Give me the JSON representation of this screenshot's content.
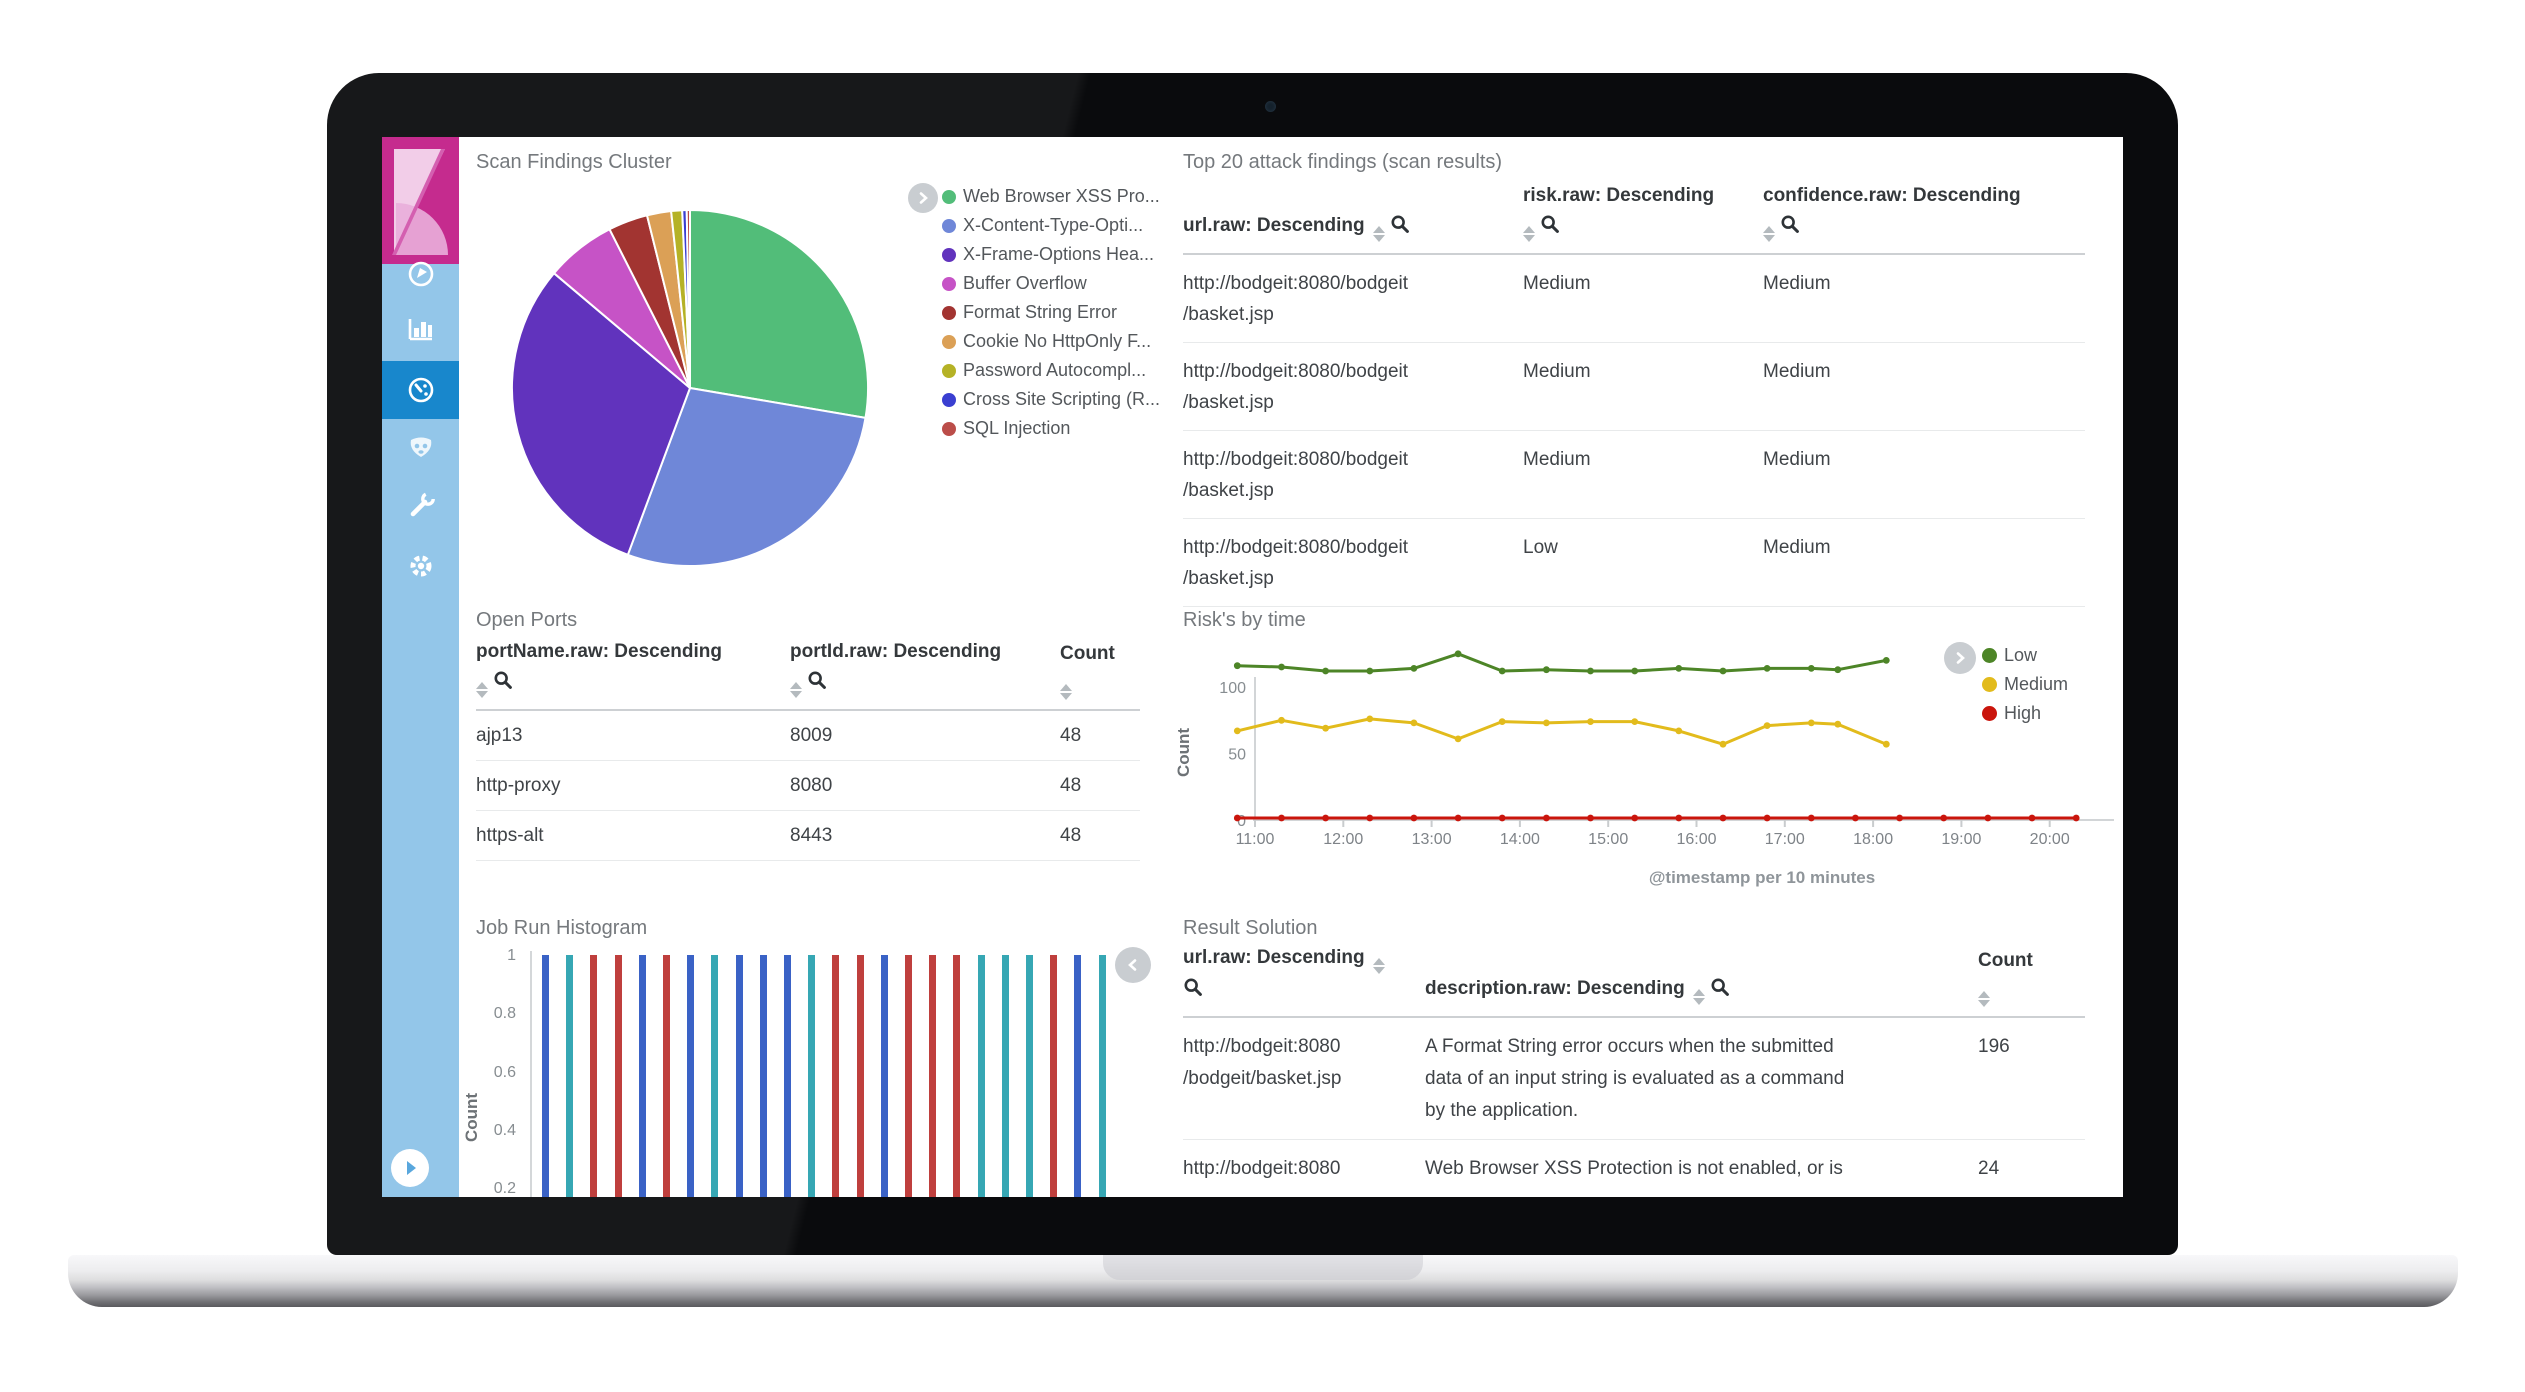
{
  "sidebar": {
    "logo": "kibana-logo",
    "items": [
      {
        "icon": "compass-icon",
        "active": false
      },
      {
        "icon": "bar-chart-icon",
        "active": false
      },
      {
        "icon": "dashboard-icon",
        "active": true
      },
      {
        "icon": "mask-icon",
        "active": false
      },
      {
        "icon": "wrench-icon",
        "active": false
      },
      {
        "icon": "gear-icon",
        "active": false
      }
    ],
    "collapse_icon": "expand-arrow-icon"
  },
  "panels": {
    "scan_findings": {
      "title": "Scan Findings Cluster"
    },
    "top20": {
      "title": "Top 20 attack findings (scan results)",
      "columns": [
        "url.raw: Descending",
        "risk.raw: Descending",
        "confidence.raw: Descending"
      ],
      "rows": [
        {
          "url": "http://bodgeit:8080/bodgeit\n/basket.jsp",
          "risk": "Medium",
          "confidence": "Medium"
        },
        {
          "url": "http://bodgeit:8080/bodgeit\n/basket.jsp",
          "risk": "Medium",
          "confidence": "Medium"
        },
        {
          "url": "http://bodgeit:8080/bodgeit\n/basket.jsp",
          "risk": "Medium",
          "confidence": "Medium"
        },
        {
          "url": "http://bodgeit:8080/bodgeit\n/basket.jsp",
          "risk": "Low",
          "confidence": "Medium"
        }
      ]
    },
    "open_ports": {
      "title": "Open Ports",
      "columns": [
        "portName.raw: Descending",
        "portId.raw: Descending",
        "Count"
      ],
      "rows": [
        {
          "portName": "ajp13",
          "portId": "8009",
          "count": "48"
        },
        {
          "portName": "http-proxy",
          "portId": "8080",
          "count": "48"
        },
        {
          "portName": "https-alt",
          "portId": "8443",
          "count": "48"
        }
      ]
    },
    "risks_by_time": {
      "title": "Risk's by time"
    },
    "job_run": {
      "title": "Job Run Histogram"
    },
    "result_solution": {
      "title": "Result Solution",
      "columns": [
        "url.raw: Descending",
        "description.raw: Descending",
        "Count"
      ],
      "rows": [
        {
          "url": "http://bodgeit:8080\n/bodgeit/basket.jsp",
          "description": "A Format String error occurs when the submitted\ndata of an input string is evaluated as a command\nby the application.",
          "count": "196"
        },
        {
          "url": "http://bodgeit:8080",
          "description": "Web Browser XSS Protection is not enabled, or is",
          "count": "24"
        }
      ]
    }
  },
  "chart_data": [
    {
      "type": "pie",
      "title": "Scan Findings Cluster",
      "categories": [
        "Web Browser XSS Pro...",
        "X-Content-Type-Opti...",
        "X-Frame-Options Hea...",
        "Buffer Overflow",
        "Format String Error",
        "Cookie No HttpOnly F...",
        "Password Autocompl...",
        "Cross Site Scripting (R...",
        "SQL Injection"
      ],
      "values": [
        27.8,
        28.1,
        30.6,
        6.4,
        3.6,
        2.2,
        1.0,
        0.4,
        0.3
      ],
      "colors": [
        "#52bd79",
        "#6f87d8",
        "#6133bd",
        "#c653c6",
        "#a23431",
        "#dba056",
        "#b5b226",
        "#3a3fd1",
        "#bb4d49"
      ],
      "legend_position": "right"
    },
    {
      "type": "line",
      "title": "Risk's by time",
      "xlabel": "@timestamp per 10 minutes",
      "ylabel": "Count",
      "ylim": [
        0,
        130
      ],
      "yticks": [
        "0",
        "50",
        "100"
      ],
      "xticks": [
        "11:00",
        "12:00",
        "13:00",
        "14:00",
        "15:00",
        "16:00",
        "17:00",
        "18:00",
        "19:00",
        "20:00"
      ],
      "legend_position": "right",
      "series": [
        {
          "name": "Low",
          "color": "#4d8527",
          "x": [
            10.8,
            11.3,
            11.8,
            12.3,
            12.8,
            13.3,
            13.8,
            14.3,
            14.8,
            15.3,
            15.8,
            16.3,
            16.8,
            17.3,
            17.6,
            18.15
          ],
          "y": [
            116,
            115,
            112,
            112,
            114,
            125,
            112,
            113,
            112,
            112,
            114,
            112,
            114,
            114,
            113,
            120
          ]
        },
        {
          "name": "Medium",
          "color": "#e2bb1c",
          "x": [
            10.8,
            11.3,
            11.8,
            12.3,
            12.8,
            13.3,
            13.8,
            14.3,
            14.8,
            15.3,
            15.8,
            16.3,
            16.8,
            17.3,
            17.6,
            18.15
          ],
          "y": [
            67,
            75,
            69,
            76,
            73,
            61,
            74,
            73,
            74,
            74,
            67,
            57,
            71,
            73,
            72,
            57
          ]
        },
        {
          "name": "High",
          "color": "#ca150c",
          "x": [
            10.8,
            11.3,
            11.8,
            12.3,
            12.8,
            13.3,
            13.8,
            14.3,
            14.8,
            15.3,
            15.8,
            16.3,
            16.8,
            17.3,
            17.8,
            18.3,
            18.8,
            19.3,
            19.8,
            20.3
          ],
          "y": [
            1.5,
            1.5,
            1.5,
            1.5,
            1.5,
            1.5,
            1.5,
            1.5,
            1.5,
            1.5,
            1.5,
            1.5,
            1.5,
            1.5,
            1.5,
            1.5,
            1.5,
            1.5,
            1.5,
            1.5
          ]
        }
      ]
    },
    {
      "type": "bar",
      "title": "Job Run Histogram",
      "ylabel": "Count",
      "yticks": [
        "1",
        "0.8",
        "0.6",
        "0.4",
        "0.2"
      ],
      "values": [
        1,
        1,
        1,
        1,
        1,
        1,
        1,
        1,
        1,
        1,
        1,
        1,
        1,
        1,
        1,
        1,
        1,
        1,
        1,
        1,
        1,
        1,
        1,
        1
      ],
      "colors": [
        "#3a62c6",
        "#36a7b4",
        "#bf3f3d",
        "#bf3f3d",
        "#3a62c6",
        "#bf3f3d",
        "#3a62c6",
        "#36a7b4",
        "#3a62c6",
        "#3a62c6",
        "#3a62c6",
        "#36a7b4",
        "#bf3f3d",
        "#bf3f3d",
        "#3a62c6",
        "#bf3f3d",
        "#bf3f3d",
        "#bf3f3d",
        "#36a7b4",
        "#36a7b4",
        "#36a7b4",
        "#bf3f3d",
        "#3a62c6",
        "#36a7b4"
      ]
    }
  ]
}
